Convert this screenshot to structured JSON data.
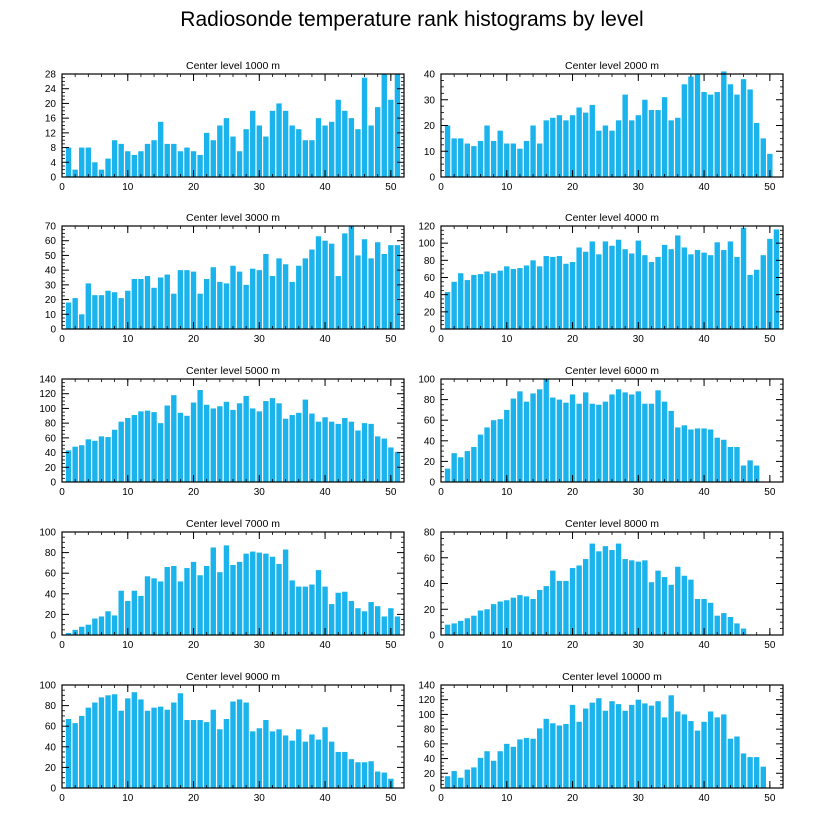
{
  "title": "Radiosonde temperature rank histograms by level",
  "bar_color": "#1ab3ec",
  "chart_data": [
    {
      "type": "bar",
      "title": "Center level 1000 m",
      "xlim": [
        0,
        52
      ],
      "ylim": [
        0,
        28
      ],
      "xticks": [
        0,
        10,
        20,
        30,
        40,
        50
      ],
      "yticks": [
        0,
        4,
        8,
        12,
        16,
        20,
        24,
        28
      ],
      "values": [
        8,
        2,
        8,
        8,
        4,
        2,
        5,
        10,
        9,
        7,
        6,
        7,
        9,
        10,
        15,
        9,
        9,
        7,
        8,
        7,
        6,
        12,
        10,
        14,
        16,
        11,
        7,
        13,
        18,
        14,
        11,
        18,
        20,
        18,
        14,
        13,
        10,
        10,
        16,
        14,
        15,
        21,
        18,
        16,
        13,
        27,
        14,
        19,
        28,
        21,
        28
      ]
    },
    {
      "type": "bar",
      "title": "Center level 2000 m",
      "xlim": [
        0,
        52
      ],
      "ylim": [
        0,
        40
      ],
      "xticks": [
        0,
        10,
        20,
        30,
        40,
        50
      ],
      "yticks": [
        0,
        10,
        20,
        30,
        40
      ],
      "values": [
        20,
        15,
        15,
        13,
        12,
        14,
        20,
        14,
        18,
        13,
        13,
        11,
        14,
        20,
        13,
        22,
        23,
        24,
        22,
        24,
        27,
        25,
        28,
        18,
        20,
        18,
        22,
        32,
        22,
        24,
        30,
        26,
        26,
        31,
        22,
        23,
        36,
        39,
        40,
        33,
        32,
        33,
        41,
        36,
        32,
        38,
        34,
        21,
        15,
        9
      ]
    },
    {
      "type": "bar",
      "title": "Center level 3000 m",
      "xlim": [
        0,
        52
      ],
      "ylim": [
        0,
        70
      ],
      "xticks": [
        0,
        10,
        20,
        30,
        40,
        50
      ],
      "yticks": [
        0,
        10,
        20,
        30,
        40,
        50,
        60,
        70
      ],
      "values": [
        18,
        21,
        10,
        31,
        23,
        23,
        26,
        25,
        21,
        26,
        34,
        34,
        36,
        28,
        35,
        37,
        24,
        40,
        40,
        39,
        24,
        34,
        42,
        32,
        31,
        43,
        39,
        30,
        41,
        40,
        51,
        36,
        48,
        44,
        32,
        43,
        48,
        54,
        63,
        60,
        58,
        36,
        65,
        70,
        50,
        61,
        48,
        59,
        51,
        57,
        57
      ]
    },
    {
      "type": "bar",
      "title": "Center level 4000 m",
      "xlim": [
        0,
        52
      ],
      "ylim": [
        0,
        120
      ],
      "xticks": [
        0,
        10,
        20,
        30,
        40,
        50
      ],
      "yticks": [
        0,
        20,
        40,
        60,
        80,
        100,
        120
      ],
      "values": [
        43,
        55,
        65,
        57,
        63,
        64,
        67,
        65,
        68,
        73,
        70,
        71,
        74,
        80,
        73,
        85,
        84,
        85,
        76,
        78,
        95,
        90,
        102,
        87,
        102,
        97,
        104,
        93,
        88,
        103,
        86,
        78,
        84,
        98,
        93,
        109,
        95,
        87,
        92,
        89,
        86,
        101,
        92,
        102,
        84,
        118,
        63,
        69,
        86,
        105,
        116
      ]
    },
    {
      "type": "bar",
      "title": "Center level 5000 m",
      "xlim": [
        0,
        52
      ],
      "ylim": [
        0,
        140
      ],
      "xticks": [
        0,
        10,
        20,
        30,
        40,
        50
      ],
      "yticks": [
        0,
        20,
        40,
        60,
        80,
        100,
        120,
        140
      ],
      "values": [
        43,
        48,
        50,
        58,
        56,
        62,
        61,
        71,
        82,
        87,
        91,
        96,
        97,
        95,
        80,
        104,
        118,
        94,
        90,
        108,
        125,
        105,
        100,
        103,
        109,
        98,
        107,
        117,
        100,
        96,
        110,
        114,
        107,
        86,
        91,
        94,
        112,
        93,
        82,
        88,
        82,
        79,
        87,
        82,
        70,
        80,
        79,
        62,
        59,
        47,
        41
      ]
    },
    {
      "type": "bar",
      "title": "Center level 6000 m",
      "xlim": [
        0,
        52
      ],
      "ylim": [
        0,
        100
      ],
      "xticks": [
        0,
        10,
        20,
        30,
        40,
        50
      ],
      "yticks": [
        0,
        20,
        40,
        60,
        80,
        100
      ],
      "values": [
        13,
        28,
        24,
        30,
        34,
        46,
        53,
        60,
        61,
        70,
        81,
        88,
        78,
        86,
        90,
        100,
        82,
        80,
        77,
        85,
        76,
        87,
        76,
        75,
        78,
        85,
        90,
        87,
        85,
        88,
        76,
        76,
        89,
        78,
        69,
        53,
        55,
        51,
        52,
        52,
        51,
        43,
        41,
        34,
        34,
        16,
        21,
        16
      ]
    },
    {
      "type": "bar",
      "title": "Center level 7000 m",
      "xlim": [
        0,
        52
      ],
      "ylim": [
        0,
        100
      ],
      "xticks": [
        0,
        10,
        20,
        30,
        40,
        50
      ],
      "yticks": [
        0,
        20,
        40,
        60,
        80,
        100
      ],
      "values": [
        2,
        5,
        8,
        10,
        16,
        18,
        23,
        19,
        43,
        33,
        43,
        38,
        57,
        55,
        52,
        66,
        67,
        52,
        65,
        71,
        58,
        67,
        85,
        61,
        87,
        68,
        71,
        79,
        81,
        80,
        79,
        76,
        69,
        83,
        53,
        47,
        47,
        49,
        63,
        47,
        30,
        41,
        42,
        33,
        26,
        23,
        32,
        28,
        18,
        26,
        18
      ]
    },
    {
      "type": "bar",
      "title": "Center level 8000 m",
      "xlim": [
        0,
        52
      ],
      "ylim": [
        0,
        80
      ],
      "xticks": [
        0,
        10,
        20,
        30,
        40,
        50
      ],
      "yticks": [
        0,
        20,
        40,
        60,
        80
      ],
      "values": [
        8,
        9,
        11,
        13,
        15,
        19,
        20,
        24,
        26,
        27,
        29,
        31,
        30,
        28,
        35,
        38,
        50,
        42,
        42,
        52,
        54,
        59,
        71,
        65,
        69,
        66,
        71,
        59,
        58,
        57,
        58,
        41,
        50,
        45,
        39,
        53,
        46,
        43,
        28,
        28,
        25,
        15,
        17,
        14,
        9,
        5
      ]
    },
    {
      "type": "bar",
      "title": "Center level 9000 m",
      "xlim": [
        0,
        52
      ],
      "ylim": [
        0,
        100
      ],
      "xticks": [
        0,
        10,
        20,
        30,
        40,
        50
      ],
      "yticks": [
        0,
        20,
        40,
        60,
        80,
        100
      ],
      "values": [
        67,
        63,
        70,
        78,
        83,
        88,
        90,
        91,
        75,
        87,
        93,
        86,
        75,
        78,
        79,
        76,
        83,
        92,
        66,
        66,
        66,
        64,
        76,
        57,
        67,
        84,
        86,
        83,
        55,
        58,
        66,
        55,
        57,
        51,
        46,
        57,
        45,
        52,
        47,
        59,
        45,
        35,
        35,
        28,
        25,
        25,
        26,
        16,
        15,
        9
      ]
    },
    {
      "type": "bar",
      "title": "Center level 10000 m",
      "xlim": [
        0,
        52
      ],
      "ylim": [
        0,
        140
      ],
      "xticks": [
        0,
        10,
        20,
        30,
        40,
        50
      ],
      "yticks": [
        0,
        20,
        40,
        60,
        80,
        100,
        120,
        140
      ],
      "values": [
        16,
        23,
        14,
        25,
        28,
        41,
        50,
        37,
        50,
        60,
        56,
        66,
        68,
        67,
        81,
        94,
        88,
        85,
        87,
        113,
        90,
        108,
        116,
        122,
        105,
        118,
        114,
        105,
        113,
        120,
        115,
        112,
        118,
        96,
        126,
        104,
        100,
        91,
        78,
        90,
        104,
        96,
        100,
        67,
        70,
        47,
        42,
        42,
        29
      ]
    }
  ]
}
